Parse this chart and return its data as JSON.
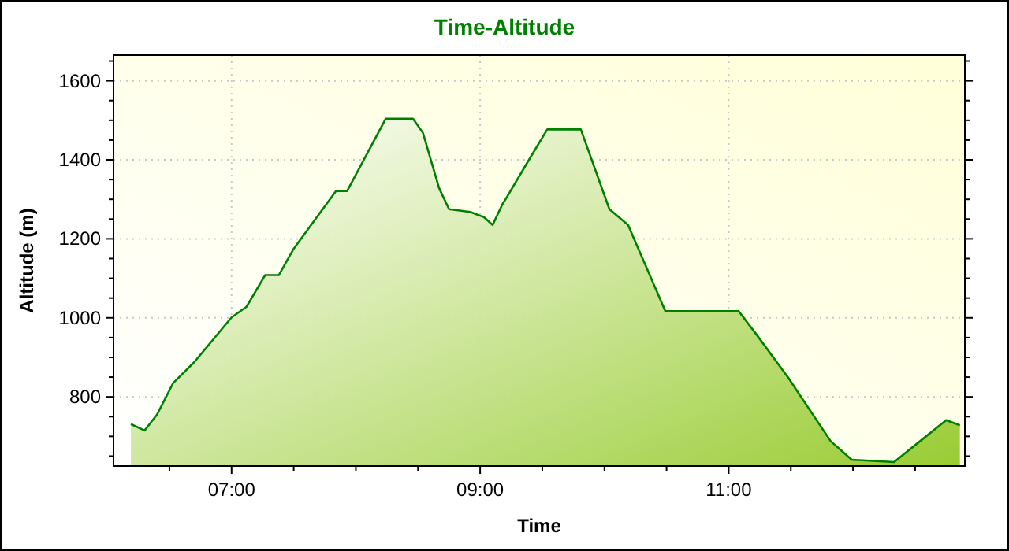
{
  "chart_data": {
    "type": "area",
    "title": "Time-Altitude",
    "xlabel": "Time",
    "ylabel": "Altitude (m)",
    "xlim": [
      6.05,
      12.9
    ],
    "ylim": [
      625,
      1665
    ],
    "xticks": [
      {
        "value": 6.5,
        "label": null
      },
      {
        "value": 7,
        "label": "07:00"
      },
      {
        "value": 7.5,
        "label": null
      },
      {
        "value": 8,
        "label": null
      },
      {
        "value": 8.5,
        "label": null
      },
      {
        "value": 9,
        "label": "09:00"
      },
      {
        "value": 9.5,
        "label": null
      },
      {
        "value": 10,
        "label": null
      },
      {
        "value": 10.5,
        "label": null
      },
      {
        "value": 11,
        "label": "11:00"
      },
      {
        "value": 11.5,
        "label": null
      },
      {
        "value": 12,
        "label": null
      },
      {
        "value": 12.5,
        "label": null
      }
    ],
    "yticks": [
      {
        "value": 650,
        "label": null
      },
      {
        "value": 700,
        "label": null
      },
      {
        "value": 750,
        "label": null
      },
      800,
      {
        "value": 850,
        "label": null
      },
      {
        "value": 900,
        "label": null
      },
      {
        "value": 950,
        "label": null
      },
      1000,
      {
        "value": 1050,
        "label": null
      },
      {
        "value": 1100,
        "label": null
      },
      {
        "value": 1150,
        "label": null
      },
      1200,
      {
        "value": 1250,
        "label": null
      },
      {
        "value": 1300,
        "label": null
      },
      {
        "value": 1350,
        "label": null
      },
      1400,
      {
        "value": 1450,
        "label": null
      },
      {
        "value": 1500,
        "label": null
      },
      {
        "value": 1550,
        "label": null
      },
      1600,
      {
        "value": 1650,
        "label": null
      }
    ],
    "grid": true,
    "series": [
      {
        "color": "#008000",
        "x": [
          6.19,
          6.3,
          6.4,
          6.53,
          6.7,
          7.0,
          7.12,
          7.27,
          7.38,
          7.5,
          7.84,
          7.93,
          8.1,
          8.24,
          8.46,
          8.54,
          8.67,
          8.75,
          8.92,
          9.03,
          9.1,
          9.18,
          9.22,
          9.37,
          9.54,
          9.81,
          10.04,
          10.19,
          10.49,
          11.08,
          11.23,
          11.48,
          11.82,
          11.99,
          12.33,
          12.54,
          12.75,
          12.86
        ],
        "values": [
          731,
          715,
          755,
          835,
          888,
          1001,
          1028,
          1108,
          1108,
          1175,
          1321,
          1321,
          1421,
          1504,
          1504,
          1468,
          1328,
          1275,
          1268,
          1255,
          1235,
          1288,
          1308,
          1388,
          1477,
          1477,
          1275,
          1235,
          1017,
          1017,
          955,
          848,
          688,
          641,
          635,
          688,
          741,
          728
        ]
      }
    ]
  }
}
